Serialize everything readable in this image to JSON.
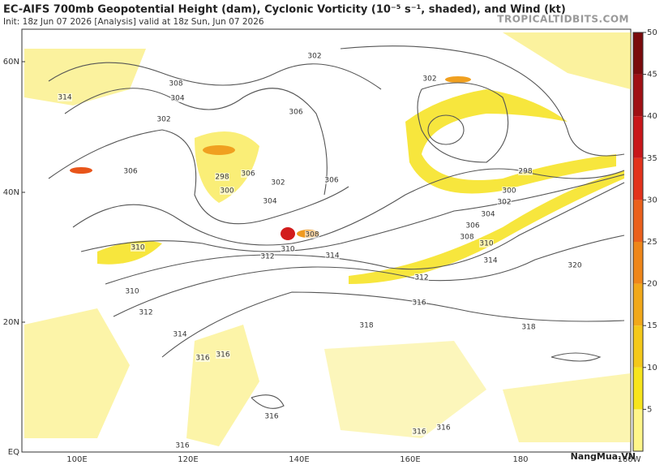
{
  "header": {
    "title": "EC-AIFS 700mb Geopotential Height (dam), Cyclonic Vorticity (10⁻⁵ s⁻¹, shaded), and Wind (kt)",
    "subtitle": "Init: 18z Jun 07 2026   [Analysis]   valid at 18z Sun, Jun 07 2026",
    "site": "TROPICALTIDBITS.COM"
  },
  "axes": {
    "lat_labels": [
      "60N",
      "40N",
      "20N",
      "EQ"
    ],
    "lon_labels": [
      "100E",
      "120E",
      "140E",
      "160E",
      "180",
      "160W"
    ]
  },
  "colorbar": {
    "ticks": [
      5,
      10,
      15,
      20,
      25,
      30,
      35,
      40,
      45,
      50
    ],
    "range": [
      0,
      50
    ],
    "colors": [
      "#fff68a",
      "#f7e41d",
      "#f4c81a",
      "#f1a81a",
      "#ee861a",
      "#ea601c",
      "#e2321c",
      "#c8161a",
      "#a01014",
      "#7a0a0c"
    ]
  },
  "contour_labels": [
    "302",
    "302",
    "308",
    "304",
    "314",
    "302",
    "306",
    "306",
    "298",
    "300",
    "302",
    "304",
    "306",
    "306",
    "298",
    "300",
    "302",
    "304",
    "306",
    "308",
    "310",
    "314",
    "312",
    "310",
    "308",
    "310",
    "312",
    "314",
    "316",
    "318",
    "318",
    "320",
    "310",
    "312",
    "314",
    "316",
    "316",
    "316",
    "316",
    "316",
    "316"
  ],
  "watermark": "NangMua.VN"
}
